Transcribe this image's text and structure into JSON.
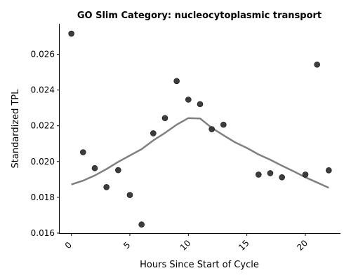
{
  "chart_data": {
    "type": "scatter",
    "title": "GO Slim Category: nucleocytoplasmic transport",
    "xlabel": "Hours Since Start of Cycle",
    "ylabel": "Standardized TPL",
    "xlim": [
      -1,
      23
    ],
    "ylim": [
      0.016,
      0.0277
    ],
    "xticks": [
      0,
      5,
      10,
      15,
      20
    ],
    "yticks": [
      0.016,
      0.018,
      0.02,
      0.022,
      0.024,
      0.026
    ],
    "ytick_labels": [
      "0.016",
      "0.018",
      "0.020",
      "0.022",
      "0.024",
      "0.026"
    ],
    "grid": false,
    "series": [
      {
        "kind": "points",
        "color": "#333333",
        "x": [
          0,
          1,
          2,
          3,
          4,
          5,
          6,
          7,
          8,
          9,
          10,
          11,
          12,
          13,
          16,
          17,
          18,
          20,
          21,
          22
        ],
        "y": [
          0.02715,
          0.02052,
          0.01963,
          0.01857,
          0.01952,
          0.01813,
          0.01648,
          0.02158,
          0.02243,
          0.0245,
          0.02346,
          0.02321,
          0.02181,
          0.02206,
          0.01927,
          0.01935,
          0.01912,
          0.01927,
          0.02542,
          0.01951
        ]
      },
      {
        "kind": "trend",
        "color": "#808080",
        "x": [
          0,
          1,
          2,
          3,
          4,
          5,
          6,
          7,
          8,
          9,
          10,
          11,
          12,
          13,
          14,
          15,
          16,
          17,
          18,
          19,
          20,
          21,
          22
        ],
        "y": [
          0.01872,
          0.01893,
          0.01922,
          0.01958,
          0.01998,
          0.02034,
          0.02069,
          0.02118,
          0.0216,
          0.02206,
          0.02243,
          0.02241,
          0.02188,
          0.02147,
          0.02107,
          0.02076,
          0.0204,
          0.0201,
          0.01977,
          0.01945,
          0.01912,
          0.01883,
          0.01853
        ]
      }
    ]
  }
}
